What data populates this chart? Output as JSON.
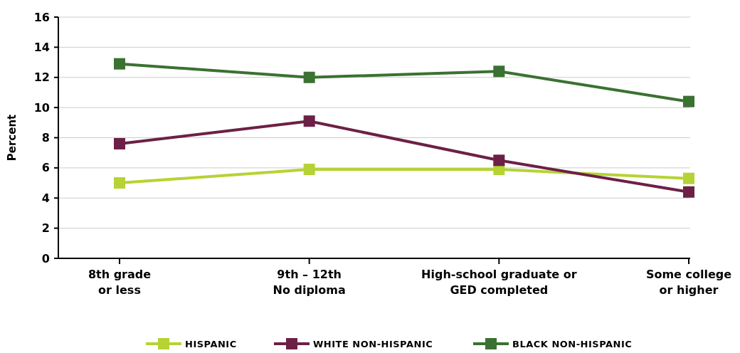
{
  "chart_data": {
    "type": "line",
    "ylabel": "Percent",
    "categories": [
      "8th grade\nor less",
      "9th – 12th\nNo diploma",
      "High-school graduate or\nGED completed",
      "Some college\nor higher"
    ],
    "series": [
      {
        "name": "HISPANIC",
        "color": "#b5d334",
        "values": [
          5.0,
          5.9,
          5.9,
          5.3
        ]
      },
      {
        "name": "WHITE NON-HISPANIC",
        "color": "#6d2046",
        "values": [
          7.6,
          9.1,
          6.5,
          4.4
        ]
      },
      {
        "name": "BLACK NON-HISPANIC",
        "color": "#3b7132",
        "values": [
          12.9,
          12.0,
          12.4,
          10.4
        ]
      }
    ],
    "ylim": [
      0,
      16
    ],
    "yticks": [
      0,
      2,
      4,
      6,
      8,
      10,
      12,
      14,
      16
    ],
    "grid": "y",
    "legend": "bottom",
    "marker": "square",
    "line_style": "solid"
  }
}
